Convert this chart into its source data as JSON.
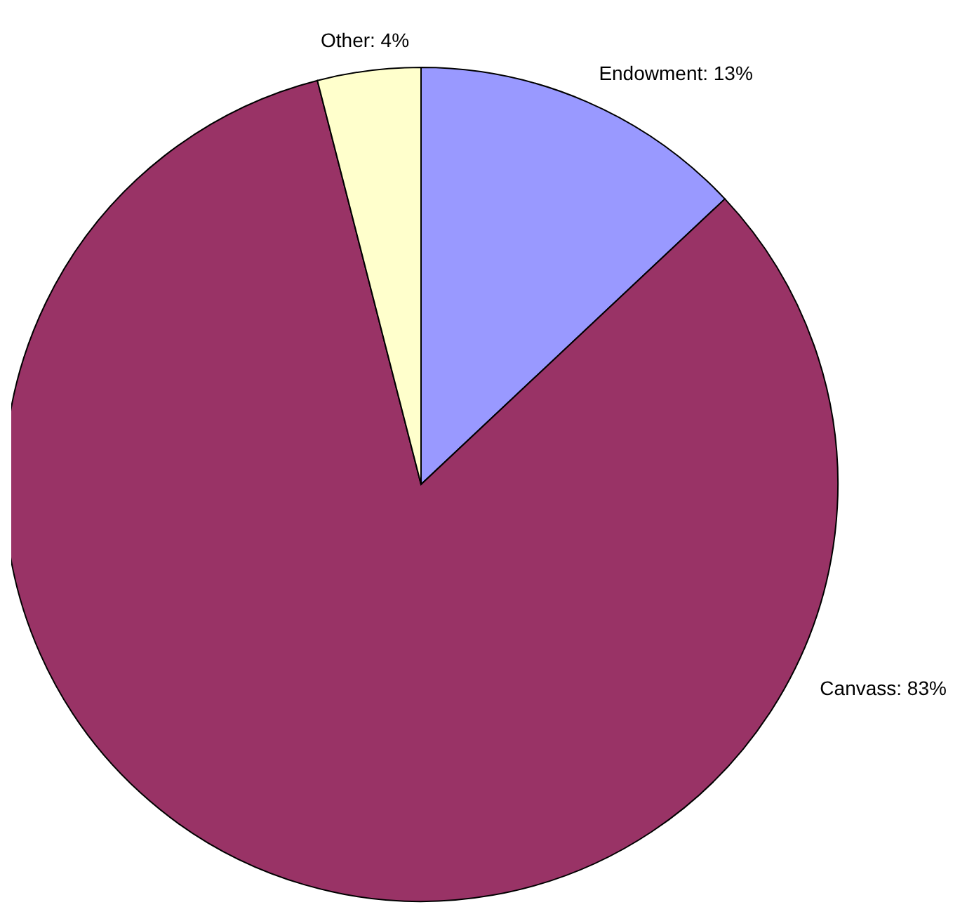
{
  "chart_data": {
    "type": "pie",
    "categories": [
      "Endowment",
      "Canvass",
      "Other"
    ],
    "values": [
      13,
      83,
      4
    ],
    "value_labels": [
      "13%",
      "83%",
      "4%"
    ],
    "colors": [
      "#9999ff",
      "#993366",
      "#ffffcc"
    ],
    "legend": false
  }
}
